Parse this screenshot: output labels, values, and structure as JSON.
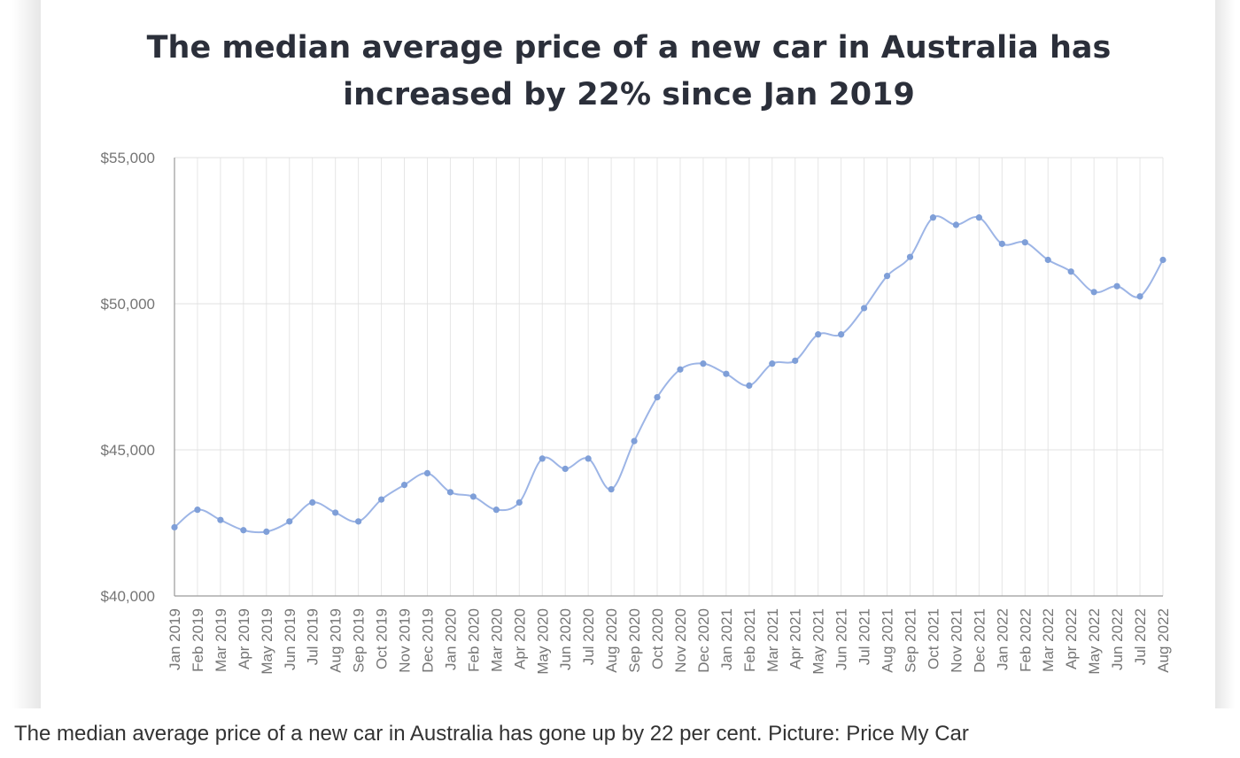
{
  "chart_data": {
    "type": "line",
    "title": "The median average price of a new car in Australia has increased by 22% since Jan 2019",
    "xlabel": "",
    "ylabel": "",
    "ylim": [
      40000,
      55000
    ],
    "y_ticks": [
      "$40,000",
      "$45,000",
      "$50,000",
      "$55,000"
    ],
    "y_tick_values": [
      40000,
      45000,
      50000,
      55000
    ],
    "grid": true,
    "legend": "none",
    "line_color": "#9db5e6",
    "point_color": "#7f9fd8",
    "categories": [
      "Jan 2019",
      "Feb 2019",
      "Mar 2019",
      "Apr 2019",
      "May 2019",
      "Jun 2019",
      "Jul 2019",
      "Aug 2019",
      "Sep 2019",
      "Oct 2019",
      "Nov 2019",
      "Dec 2019",
      "Jan 2020",
      "Feb 2020",
      "Mar 2020",
      "Apr 2020",
      "May 2020",
      "Jun 2020",
      "Jul 2020",
      "Aug 2020",
      "Sep 2020",
      "Oct 2020",
      "Nov 2020",
      "Dec 2020",
      "Jan 2021",
      "Feb 2021",
      "Mar 2021",
      "Apr 2021",
      "May 2021",
      "Jun 2021",
      "Jul 2021",
      "Aug 2021",
      "Sep 2021",
      "Oct 2021",
      "Nov 2021",
      "Dec 2021",
      "Jan 2022",
      "Feb 2022",
      "Mar 2022",
      "Apr 2022",
      "May 2022",
      "Jun 2022",
      "Jul 2022",
      "Aug 2022"
    ],
    "series": [
      {
        "values": [
          42350,
          42950,
          42600,
          42250,
          42200,
          42550,
          43200,
          42850,
          42550,
          43300,
          43800,
          44200,
          43550,
          43400,
          42950,
          43200,
          44700,
          44350,
          44700,
          43650,
          45300,
          46800,
          47750,
          47950,
          47600,
          47200,
          47950,
          48050,
          48950,
          48950,
          49850,
          50950,
          51600,
          52950,
          52700,
          52950,
          52050,
          52100,
          51500,
          51100,
          50400,
          50600,
          50250,
          51500
        ]
      }
    ]
  },
  "caption": "The median average price of a new car in Australia has gone up by 22 per cent. Picture: Price My Car"
}
